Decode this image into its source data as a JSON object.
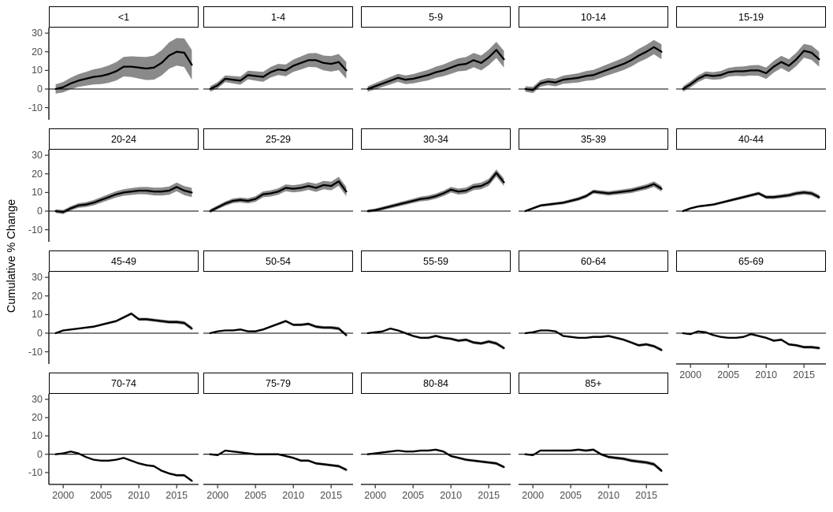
{
  "chart_data": {
    "type": "line",
    "title": "",
    "ylabel": "Cumulative % Change",
    "xlabel": "",
    "x": [
      1999,
      2000,
      2001,
      2002,
      2003,
      2004,
      2005,
      2006,
      2007,
      2008,
      2009,
      2010,
      2011,
      2012,
      2013,
      2014,
      2015,
      2016,
      2017
    ],
    "xticks": [
      2000,
      2005,
      2010,
      2015
    ],
    "yticks": [
      30,
      20,
      10,
      0,
      -10
    ],
    "xlim": [
      1998.1,
      2017.9
    ],
    "ylim": [
      -16.5,
      33
    ],
    "grid": false,
    "legend": "none",
    "ribbon_note": "gray band = confidence interval, half-width interpolated from band[0] at 1999 to band[1] at 2017",
    "facets": [
      {
        "label": "<1",
        "band": [
          2.5,
          8
        ],
        "values": [
          0,
          1,
          3,
          4.5,
          5.5,
          6.5,
          7,
          8,
          9.5,
          12,
          12,
          11.5,
          11,
          11.5,
          14,
          18,
          20,
          19.5,
          13
        ]
      },
      {
        "label": "1-4",
        "band": [
          1.5,
          4.5
        ],
        "values": [
          0,
          2,
          5.5,
          5,
          4.5,
          7.5,
          7,
          6.5,
          9,
          10.5,
          10,
          12.5,
          14,
          15.5,
          15.5,
          14,
          13.5,
          14.5,
          10
        ]
      },
      {
        "label": "5-9",
        "band": [
          1.5,
          4.5
        ],
        "values": [
          0,
          1.5,
          3,
          4.5,
          6,
          5,
          5.5,
          6.5,
          7.5,
          9,
          10,
          11.5,
          13,
          13.5,
          15.5,
          14,
          17,
          21,
          16
        ]
      },
      {
        "label": "10-14",
        "band": [
          1.5,
          4
        ],
        "values": [
          0,
          -0.5,
          3,
          4,
          3.5,
          5,
          5.5,
          6,
          7,
          7.5,
          9,
          10.5,
          12,
          13.5,
          15.5,
          18,
          20,
          22.5,
          20
        ]
      },
      {
        "label": "15-19",
        "band": [
          1.5,
          4
        ],
        "values": [
          0,
          2.5,
          5.5,
          7.5,
          7,
          7.5,
          9,
          9.5,
          9.5,
          10,
          10,
          8.5,
          12,
          14.5,
          12.5,
          16,
          20.5,
          19.5,
          16
        ]
      },
      {
        "label": "20-24",
        "band": [
          1,
          2.5
        ],
        "values": [
          0,
          -0.5,
          1.5,
          3,
          3.5,
          4.5,
          6,
          7.5,
          9,
          10,
          10.5,
          11,
          11,
          10.5,
          10.5,
          11,
          13,
          11,
          10
        ]
      },
      {
        "label": "25-29",
        "band": [
          1,
          2.5
        ],
        "values": [
          0,
          2,
          4,
          5.5,
          6,
          5.5,
          6.5,
          9,
          9.5,
          10.5,
          12.5,
          12,
          12.5,
          13.5,
          12.5,
          14,
          13.5,
          16,
          10.5
        ]
      },
      {
        "label": "30-34",
        "band": [
          0.8,
          2
        ],
        "values": [
          0,
          0.5,
          1.5,
          2.5,
          3.5,
          4.5,
          5.5,
          6.5,
          7,
          8,
          9.5,
          11.5,
          10.5,
          11,
          13,
          13.5,
          15.5,
          20.5,
          15.5
        ]
      },
      {
        "label": "35-39",
        "band": [
          0.6,
          1.5
        ],
        "values": [
          0,
          1.5,
          3,
          3.5,
          4,
          4.5,
          5.5,
          6.5,
          8,
          10.5,
          10,
          9.5,
          10,
          10.5,
          11,
          12,
          13,
          14.5,
          12
        ]
      },
      {
        "label": "40-44",
        "band": [
          0.5,
          1.2
        ],
        "values": [
          0,
          1.5,
          2.5,
          3,
          3.5,
          4.5,
          5.5,
          6.5,
          7.5,
          8.5,
          9.5,
          7.5,
          7.5,
          8,
          8.5,
          9.5,
          10,
          9.5,
          7.5
        ]
      },
      {
        "label": "45-49",
        "band": [
          0.4,
          1
        ],
        "values": [
          0,
          1.5,
          2,
          2.5,
          3,
          3.5,
          4.5,
          5.5,
          6.5,
          8.5,
          10.5,
          7.5,
          7.5,
          7,
          6.5,
          6,
          6,
          5.5,
          2.5
        ]
      },
      {
        "label": "50-54",
        "band": [
          0.4,
          0.9
        ],
        "values": [
          0,
          1,
          1.5,
          1.5,
          2,
          1,
          1,
          2,
          3.5,
          5,
          6.5,
          4.5,
          4.5,
          5,
          3.5,
          3,
          3,
          2.5,
          -1
        ]
      },
      {
        "label": "55-59",
        "band": [
          0.4,
          0.9
        ],
        "values": [
          0,
          0.5,
          1,
          2.5,
          1.5,
          0,
          -1.5,
          -2.5,
          -2.5,
          -1.5,
          -2.5,
          -3,
          -4,
          -3.5,
          -5,
          -5.5,
          -4.5,
          -5.5,
          -8
        ]
      },
      {
        "label": "60-64",
        "band": [
          0.3,
          0.8
        ],
        "values": [
          0,
          0.5,
          1.5,
          1.5,
          1,
          -1.5,
          -2,
          -2.5,
          -2.5,
          -2,
          -2,
          -1.5,
          -2.5,
          -3.5,
          -5,
          -6.5,
          -6,
          -7,
          -9
        ]
      },
      {
        "label": "65-69",
        "band": [
          0.3,
          0.8
        ],
        "values": [
          0,
          -0.5,
          1,
          0.5,
          -1,
          -2,
          -2.5,
          -2.5,
          -2,
          -0.5,
          -1.5,
          -2.5,
          -4,
          -3.5,
          -6,
          -6.5,
          -7.5,
          -7.5,
          -8
        ]
      },
      {
        "label": "70-74",
        "band": [
          0.3,
          0.7
        ],
        "values": [
          0,
          0.5,
          1.5,
          0.5,
          -1.5,
          -3,
          -3.5,
          -3.5,
          -3,
          -2,
          -3.5,
          -5,
          -6,
          -6.5,
          -9,
          -10.5,
          -11.5,
          -11.5,
          -14.5
        ]
      },
      {
        "label": "75-79",
        "band": [
          0.3,
          0.8
        ],
        "values": [
          0,
          -0.5,
          2,
          1.5,
          1,
          0.5,
          0,
          0,
          0,
          0,
          -1,
          -2,
          -3.5,
          -3.5,
          -5,
          -5.5,
          -6,
          -6.5,
          -8.5
        ]
      },
      {
        "label": "80-84",
        "band": [
          0.3,
          0.8
        ],
        "values": [
          0,
          0.5,
          1,
          1.5,
          2,
          1.5,
          1.5,
          2,
          2,
          2.5,
          1.5,
          -1,
          -2,
          -3,
          -3.5,
          -4,
          -4.5,
          -5,
          -7
        ]
      },
      {
        "label": "85+",
        "band": [
          0.4,
          1
        ],
        "values": [
          0,
          -0.5,
          2,
          2,
          2,
          2,
          2,
          2.5,
          2,
          2.5,
          0,
          -1.5,
          -2,
          -2.5,
          -3.5,
          -4,
          -4.5,
          -5.5,
          -9
        ]
      }
    ],
    "colors": {
      "line": "#000000",
      "ribbon": "#8a8a8a",
      "axis_text": "#4d4d4d",
      "axis_line": "#000000",
      "strip_border": "#000000",
      "strip_bg": "#ffffff",
      "background": "#ffffff"
    }
  }
}
